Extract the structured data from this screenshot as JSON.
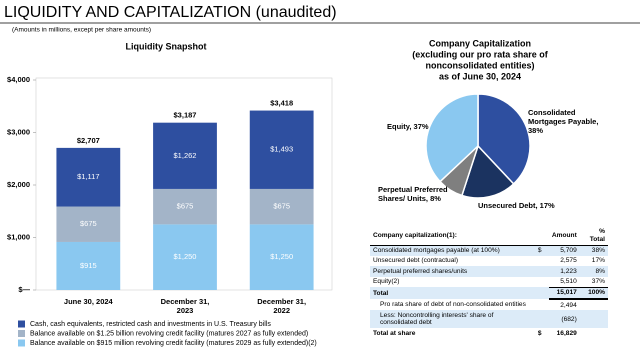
{
  "header": {
    "title": "LIQUIDITY AND CAPITALIZATION (unaudited)",
    "subtitle": "(Amounts in millions, except per share amounts)"
  },
  "chart_data": [
    {
      "type": "stacked_bar",
      "title": "Liquidity Snapshot",
      "categories": [
        "June 30, 2024",
        "December 31, 2023",
        "December 31, 2022"
      ],
      "series": [
        {
          "name": "Cash, cash equivalents, restricted cash and investments in U.S. Treasury bills",
          "color": "#2e4fa0",
          "values": [
            1117,
            1262,
            1493
          ],
          "value_labels": [
            "$1,117",
            "$1,262",
            "$1,493"
          ]
        },
        {
          "name": "Balance available on $1.25 billion revolving credit facility (matures 2027 as fully extended)",
          "color": "#a3b4c8",
          "values": [
            675,
            675,
            675
          ],
          "value_labels": [
            "$675",
            "$675",
            "$675"
          ]
        },
        {
          "name": "Balance available on $915 million revolving credit facility (matures 2029 as fully extended)(2)",
          "color": "#8ac8f0",
          "values": [
            915,
            1250,
            1250
          ],
          "value_labels": [
            "$915",
            "$1,250",
            "$1,250"
          ]
        }
      ],
      "totals": [
        2707,
        3187,
        3418
      ],
      "total_labels": [
        "$2,707",
        "$3,187",
        "$3,418"
      ],
      "ylim": [
        0,
        4000
      ],
      "yticks": [
        {
          "value": 0,
          "label": "$—"
        },
        {
          "value": 1000,
          "label": "$1,000"
        },
        {
          "value": 2000,
          "label": "$2,000"
        },
        {
          "value": 3000,
          "label": "$3,000"
        },
        {
          "value": 4000,
          "label": "$4,000"
        }
      ],
      "grid": false,
      "legend": "bottom-left"
    },
    {
      "type": "pie",
      "title": [
        "Company Capitalization",
        "(excluding our pro rata share of",
        "nonconsolidated entities)",
        "as of June 30, 2024"
      ],
      "categories": [
        "Consolidated Mortgages Payable, 38%",
        "Unsecured Debt, 17%",
        "Perpetual Preferred Shares/ Units, 8%",
        "Equity, 37%"
      ],
      "values": [
        38,
        17,
        8,
        37
      ],
      "colors": [
        "#2e4fa0",
        "#1b3360",
        "#7f7f7f",
        "#8ac8f0"
      ]
    }
  ],
  "table": {
    "header": {
      "label": "Company capitalization(1):",
      "amount": "Amount",
      "pct": "% Total"
    },
    "rows": [
      {
        "label": "Consolidated mortgages payable (at 100%)",
        "currency": "$",
        "amount": "5,709",
        "pct": "38%"
      },
      {
        "label": "Unsecured debt (contractual)",
        "amount": "2,575",
        "pct": "17%"
      },
      {
        "label": "Perpetual preferred shares/units",
        "amount": "1,223",
        "pct": "8%"
      },
      {
        "label": "Equity(2)",
        "amount": "5,510",
        "pct": "37%"
      },
      {
        "label": "Total",
        "amount": "15,017",
        "pct": "100%"
      },
      {
        "label": "Pro rata share of debt of non-consolidated entities",
        "amount": "2,494"
      },
      {
        "label": "Less: Noncontrolling interests' share of consolidated debt",
        "amount": "(682)"
      },
      {
        "label": "Total at share",
        "currency": "$",
        "amount": "16,829"
      }
    ]
  }
}
